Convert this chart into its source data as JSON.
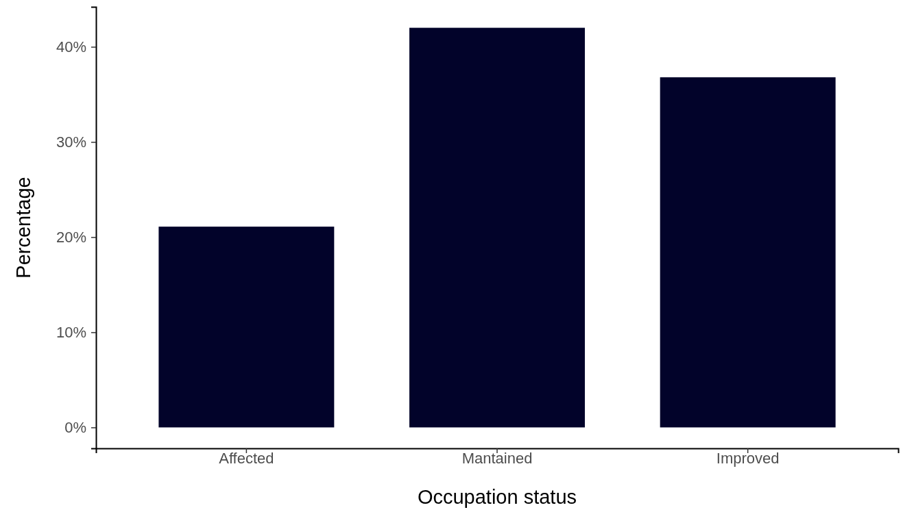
{
  "chart_data": {
    "type": "bar",
    "xlabel": "Occupation status",
    "ylabel": "Percentage",
    "categories": [
      "Affected",
      "Mantained",
      "Improved"
    ],
    "values": [
      21.1,
      42.0,
      36.8
    ],
    "color": "#02032a",
    "ylim": [
      -2.2,
      44.2
    ],
    "yticks": [
      {
        "value": 0,
        "label": "0%"
      },
      {
        "value": 10,
        "label": "10%"
      },
      {
        "value": 20,
        "label": "20%"
      },
      {
        "value": 30,
        "label": "30%"
      },
      {
        "value": 40,
        "label": "40%"
      }
    ],
    "grid": false
  }
}
